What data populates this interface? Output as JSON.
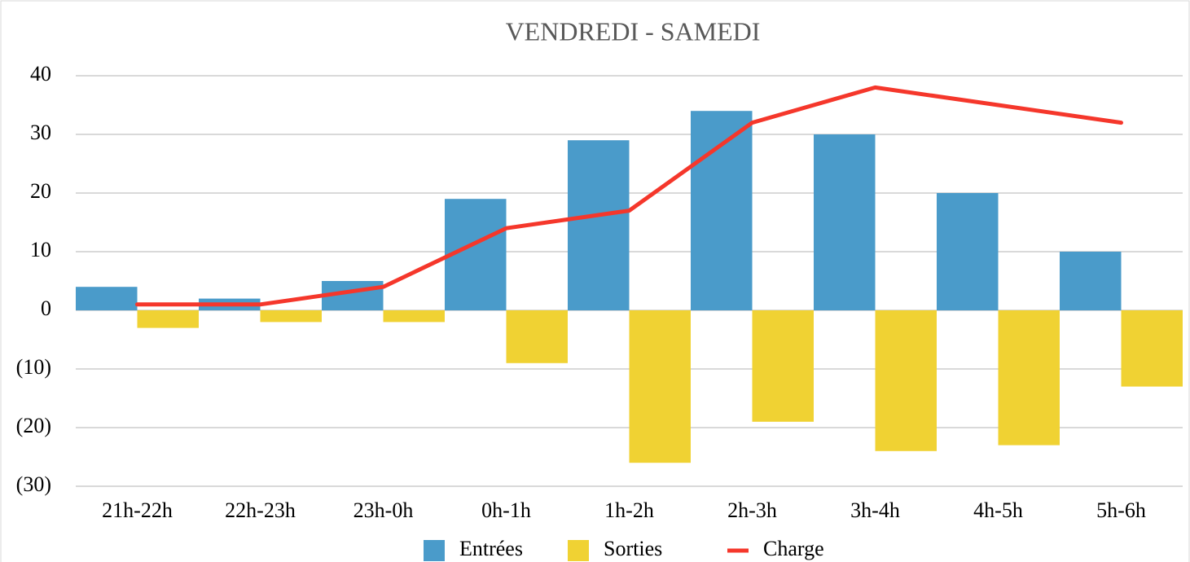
{
  "chart_data": {
    "type": "bar_line",
    "title": "VENDREDI - SAMEDI",
    "categories": [
      "21h-22h",
      "22h-23h",
      "23h-0h",
      "0h-1h",
      "1h-2h",
      "2h-3h",
      "3h-4h",
      "4h-5h",
      "5h-6h"
    ],
    "series": [
      {
        "name": "Entrées",
        "type": "bar",
        "color": "#4a9bca",
        "values": [
          4,
          2,
          5,
          19,
          29,
          34,
          30,
          20,
          10
        ]
      },
      {
        "name": "Sorties",
        "type": "bar",
        "color": "#f0d233",
        "values": [
          -3,
          -2,
          -2,
          -9,
          -26,
          -19,
          -24,
          -23,
          -13
        ]
      },
      {
        "name": "Charge",
        "type": "line",
        "color": "#f5372b",
        "values": [
          1,
          1,
          4,
          14,
          17,
          32,
          38,
          35,
          32
        ]
      }
    ],
    "ylim": [
      -30,
      40
    ],
    "yticks": [
      {
        "value": -30,
        "label": "(30)"
      },
      {
        "value": -20,
        "label": "(20)"
      },
      {
        "value": -10,
        "label": "(10)"
      },
      0,
      10,
      20,
      30,
      40
    ],
    "grid": true,
    "legend": "bottom"
  }
}
